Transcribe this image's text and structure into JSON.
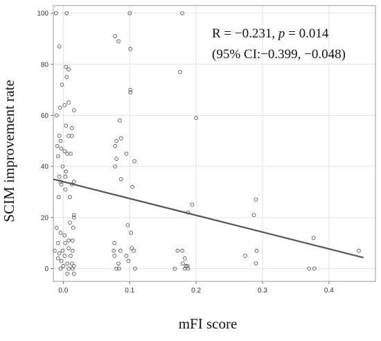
{
  "chart_data": {
    "type": "scatter",
    "xlabel": "mFI score",
    "ylabel": "SCIM improvement rate",
    "xlim": [
      -0.015,
      0.47
    ],
    "ylim": [
      -5,
      103
    ],
    "grid": true,
    "x_ticks": [
      0.0,
      0.1,
      0.2,
      0.3,
      0.4
    ],
    "x_tick_labels": [
      "0.0",
      "0.1",
      "0.2",
      "0.3",
      "0.4"
    ],
    "y_ticks": [
      0,
      20,
      40,
      60,
      80,
      100
    ],
    "y_tick_labels": [
      "0",
      "20",
      "40",
      "60",
      "80",
      "100"
    ],
    "annotation": {
      "line1_prefix": "R = −0.231, ",
      "line1_p": "p",
      "line1_suffix": " = 0.014",
      "line2": "(95% CI:−0.399, −0.048)"
    },
    "regression": {
      "x": [
        -0.015,
        0.452
      ],
      "y": [
        35.0,
        4.3
      ]
    },
    "points": [
      [
        -0.011,
        100
      ],
      [
        0.005,
        100
      ],
      [
        -0.006,
        87
      ],
      [
        0.004,
        79
      ],
      [
        0.008,
        78
      ],
      [
        -0.002,
        72
      ],
      [
        0.005,
        75
      ],
      [
        -0.005,
        63
      ],
      [
        0.002,
        64
      ],
      [
        0.008,
        65
      ],
      [
        0.016,
        62
      ],
      [
        -0.01,
        60
      ],
      [
        0.004,
        56
      ],
      [
        0.013,
        55
      ],
      [
        0.008,
        52
      ],
      [
        0.013,
        52
      ],
      [
        -0.006,
        52
      ],
      [
        -0.004,
        50
      ],
      [
        -0.009,
        48
      ],
      [
        -0.003,
        47
      ],
      [
        0.006,
        45
      ],
      [
        0.002,
        46
      ],
      [
        -0.001,
        40
      ],
      [
        -0.008,
        44
      ],
      [
        0.011,
        45
      ],
      [
        -0.006,
        36
      ],
      [
        0.004,
        38
      ],
      [
        0.003,
        36
      ],
      [
        -0.004,
        34
      ],
      [
        0.013,
        33
      ],
      [
        0.016,
        34
      ],
      [
        0.003,
        31
      ],
      [
        -0.003,
        33
      ],
      [
        0.01,
        28
      ],
      [
        -0.007,
        28
      ],
      [
        0.016,
        21
      ],
      [
        0.016,
        20
      ],
      [
        0.01,
        18
      ],
      [
        -0.01,
        16
      ],
      [
        0.015,
        16
      ],
      [
        -0.004,
        14
      ],
      [
        0.002,
        13
      ],
      [
        0.008,
        11
      ],
      [
        0.014,
        11
      ],
      [
        -0.008,
        10
      ],
      [
        0.003,
        10
      ],
      [
        0.008,
        8
      ],
      [
        0.014,
        7
      ],
      [
        -0.013,
        7
      ],
      [
        -0.006,
        6
      ],
      [
        -0.001,
        7
      ],
      [
        0.002,
        5
      ],
      [
        -0.008,
        4
      ],
      [
        0.011,
        5
      ],
      [
        -0.003,
        3
      ],
      [
        0.006,
        2
      ],
      [
        0.013,
        2
      ],
      [
        0.008,
        0
      ],
      [
        0.014,
        0
      ],
      [
        0.016,
        1
      ],
      [
        -0.004,
        0
      ],
      [
        0.006,
        -2
      ],
      [
        0.016,
        -2
      ],
      [
        0.0,
        1
      ],
      [
        0.1,
        100
      ],
      [
        0.078,
        91
      ],
      [
        0.083,
        89
      ],
      [
        0.101,
        86
      ],
      [
        0.101,
        70
      ],
      [
        0.101,
        69
      ],
      [
        0.085,
        58
      ],
      [
        0.08,
        50
      ],
      [
        0.087,
        51
      ],
      [
        0.078,
        48
      ],
      [
        0.095,
        45
      ],
      [
        0.08,
        43
      ],
      [
        0.107,
        42
      ],
      [
        0.078,
        40
      ],
      [
        0.087,
        35
      ],
      [
        0.104,
        32
      ],
      [
        0.097,
        17
      ],
      [
        0.102,
        14
      ],
      [
        0.077,
        10
      ],
      [
        0.076,
        7
      ],
      [
        0.077,
        5
      ],
      [
        0.086,
        7
      ],
      [
        0.103,
        8
      ],
      [
        0.106,
        7
      ],
      [
        0.083,
        2
      ],
      [
        0.08,
        0
      ],
      [
        0.084,
        0
      ],
      [
        0.098,
        3
      ],
      [
        0.108,
        0
      ],
      [
        0.095,
        5
      ],
      [
        0.179,
        100
      ],
      [
        0.176,
        77
      ],
      [
        0.2,
        59
      ],
      [
        0.194,
        25
      ],
      [
        0.188,
        22
      ],
      [
        0.172,
        7
      ],
      [
        0.179,
        7
      ],
      [
        0.183,
        4
      ],
      [
        0.18,
        2
      ],
      [
        0.185,
        1
      ],
      [
        0.187,
        1
      ],
      [
        0.183,
        0
      ],
      [
        0.188,
        0
      ],
      [
        0.168,
        0
      ],
      [
        0.29,
        27
      ],
      [
        0.287,
        21
      ],
      [
        0.291,
        7
      ],
      [
        0.274,
        5
      ],
      [
        0.29,
        2
      ],
      [
        0.377,
        12
      ],
      [
        0.37,
        0
      ],
      [
        0.378,
        0
      ],
      [
        0.445,
        7
      ]
    ]
  }
}
